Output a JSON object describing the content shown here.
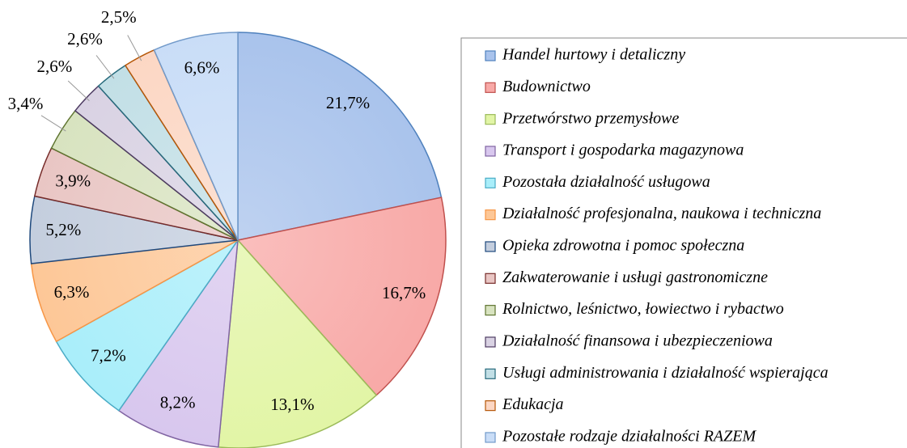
{
  "chart_data": {
    "type": "pie",
    "categories": [
      "Handel hurtowy i detaliczny",
      "Budownictwo",
      "Przetwórstwo przemysłowe",
      "Transport i gospodarka magazynowa",
      "Pozostała działalność usługowa",
      "Działalność profesjonalna, naukowa i techniczna",
      "Opieka zdrowotna i pomoc społeczna",
      "Zakwaterowanie i usługi gastronomiczne",
      "Rolnictwo, leśnictwo, łowiectwo i rybactwo",
      "Działalność finansowa i ubezpieczeniowa",
      "Usługi administrowania i działalność wspierająca",
      "Edukacja",
      "Pozostałe rodzaje działalności RAZEM"
    ],
    "values": [
      21.7,
      16.7,
      13.1,
      8.2,
      7.2,
      6.3,
      5.2,
      3.9,
      3.4,
      2.6,
      2.6,
      2.5,
      6.6
    ],
    "value_labels": [
      "21,7%",
      "16,7%",
      "13,1%",
      "8,2%",
      "7,2%",
      "6,3%",
      "5,2%",
      "3,9%",
      "3,4%",
      "2,6%",
      "2,6%",
      "2,5%",
      "6,6%"
    ],
    "colors": [
      "#4f81bd",
      "#c0504d",
      "#9bbb59",
      "#8064a2",
      "#4bacc6",
      "#f79646",
      "#1f497d",
      "#772c2a",
      "#5f7530",
      "#4d3b62",
      "#276a7c",
      "#b65708",
      "#729aca"
    ],
    "fills": [
      "#a9c3ec",
      "#f8a9a7",
      "#e2f5a6",
      "#d8c7ee",
      "#a9eefa",
      "#fdc797",
      "#c4cede",
      "#e9c6c4",
      "#d8e3c0",
      "#d9d2e3",
      "#c2dfe6",
      "#fcd7c4",
      "#c9ddf7"
    ],
    "legend": "right"
  }
}
